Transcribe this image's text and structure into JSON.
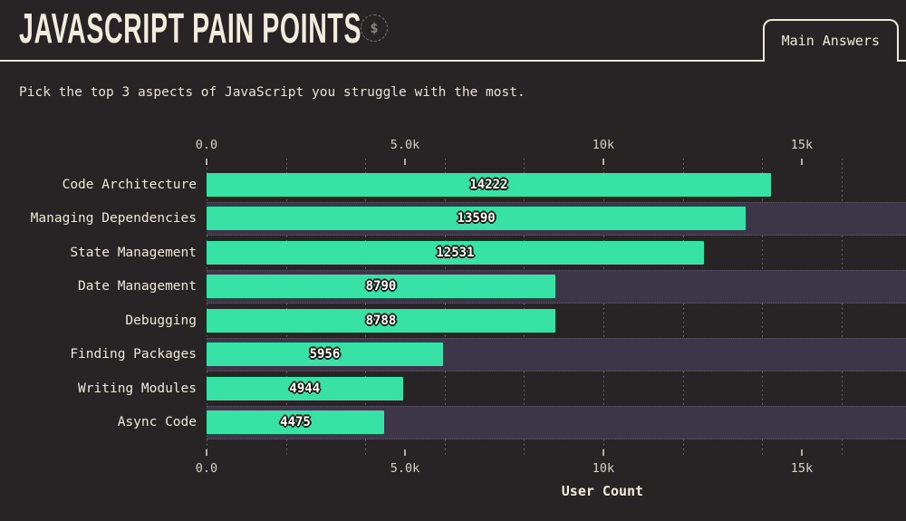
{
  "header": {
    "title": "JAVASCRIPT PAIN POINTS",
    "title_icon": "$",
    "tab_label": "Main Answers"
  },
  "subtitle": "Pick the top 3 aspects of JavaScript you struggle with the most.",
  "chart_data": {
    "type": "bar",
    "orientation": "horizontal",
    "title": "JavaScript Pain Points",
    "xlabel": "User Count",
    "categories": [
      "Code Architecture",
      "Managing Dependencies",
      "State Management",
      "Date Management",
      "Debugging",
      "Finding Packages",
      "Writing Modules",
      "Async Code"
    ],
    "values": [
      14222,
      13590,
      12531,
      8790,
      8788,
      5956,
      4944,
      4475
    ],
    "xlim": [
      0,
      17626
    ],
    "major_ticks": [
      {
        "value": 0,
        "label": "0.0"
      },
      {
        "value": 5000,
        "label": "5.0k"
      },
      {
        "value": 10000,
        "label": "10k"
      },
      {
        "value": 15000,
        "label": "15k"
      }
    ],
    "gridline_step": 2000,
    "gridline_max": 16000,
    "grid": "dotted-vertical",
    "legend": "none",
    "bar_color": "#38e1a6",
    "stripe_color": "#3d3649",
    "background": "#282425",
    "text_color": "#efe9dc"
  }
}
